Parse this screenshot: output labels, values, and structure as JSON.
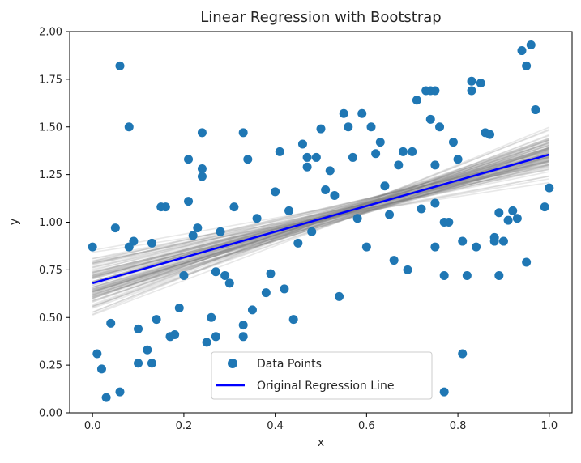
{
  "chart_data": {
    "type": "scatter",
    "title": "Linear Regression with Bootstrap",
    "xlabel": "x",
    "ylabel": "y",
    "xlim": [
      -0.05,
      1.05
    ],
    "ylim": [
      0.0,
      2.0
    ],
    "x_ticks": [
      "0.0",
      "0.2",
      "0.4",
      "0.6",
      "0.8",
      "1.0"
    ],
    "y_ticks": [
      "0.00",
      "0.25",
      "0.50",
      "0.75",
      "1.00",
      "1.25",
      "1.50",
      "1.75",
      "2.00"
    ],
    "grid": false,
    "legend_position": "lower center",
    "colors": {
      "points": "#1f77b4",
      "regression_line": "#0000ff",
      "bootstrap_lines": "#808080"
    },
    "series": [
      {
        "name": "Data Points",
        "kind": "scatter",
        "x": [
          0.0,
          0.01,
          0.02,
          0.03,
          0.04,
          0.05,
          0.06,
          0.06,
          0.08,
          0.08,
          0.09,
          0.1,
          0.1,
          0.12,
          0.13,
          0.13,
          0.14,
          0.15,
          0.16,
          0.17,
          0.18,
          0.19,
          0.2,
          0.21,
          0.21,
          0.22,
          0.23,
          0.24,
          0.24,
          0.24,
          0.25,
          0.26,
          0.27,
          0.27,
          0.28,
          0.29,
          0.3,
          0.31,
          0.33,
          0.33,
          0.33,
          0.34,
          0.35,
          0.36,
          0.38,
          0.39,
          0.4,
          0.41,
          0.42,
          0.43,
          0.44,
          0.45,
          0.46,
          0.47,
          0.47,
          0.48,
          0.49,
          0.5,
          0.51,
          0.52,
          0.53,
          0.54,
          0.55,
          0.56,
          0.57,
          0.58,
          0.59,
          0.6,
          0.61,
          0.62,
          0.63,
          0.64,
          0.65,
          0.66,
          0.67,
          0.68,
          0.69,
          0.7,
          0.71,
          0.72,
          0.73,
          0.74,
          0.74,
          0.75,
          0.75,
          0.75,
          0.75,
          0.76,
          0.77,
          0.77,
          0.77,
          0.78,
          0.79,
          0.8,
          0.81,
          0.81,
          0.82,
          0.83,
          0.83,
          0.84,
          0.85,
          0.86,
          0.87,
          0.88,
          0.88,
          0.89,
          0.89,
          0.9,
          0.91,
          0.92,
          0.93,
          0.94,
          0.95,
          0.95,
          0.96,
          0.97,
          0.99,
          1.0
        ],
        "y": [
          0.87,
          0.31,
          0.23,
          0.08,
          0.47,
          0.97,
          1.82,
          0.11,
          1.5,
          0.87,
          0.9,
          0.44,
          0.26,
          0.33,
          0.26,
          0.89,
          0.49,
          1.08,
          1.08,
          0.4,
          0.41,
          0.55,
          0.72,
          1.33,
          1.11,
          0.93,
          0.97,
          1.47,
          1.28,
          1.24,
          0.37,
          0.5,
          0.74,
          0.4,
          0.95,
          0.72,
          0.68,
          1.08,
          1.47,
          0.46,
          0.4,
          1.33,
          0.54,
          1.02,
          0.63,
          0.73,
          1.16,
          1.37,
          0.65,
          1.06,
          0.49,
          0.89,
          1.41,
          1.34,
          1.29,
          0.95,
          1.34,
          1.49,
          1.17,
          1.27,
          1.14,
          0.61,
          1.57,
          1.5,
          1.34,
          1.02,
          1.57,
          0.87,
          1.5,
          1.36,
          1.42,
          1.19,
          1.04,
          0.8,
          1.3,
          1.37,
          0.75,
          1.37,
          1.64,
          1.07,
          1.69,
          1.69,
          1.54,
          1.3,
          0.87,
          1.69,
          1.1,
          1.5,
          1.0,
          0.72,
          0.11,
          1.0,
          1.42,
          1.33,
          0.9,
          0.31,
          0.72,
          1.74,
          1.69,
          0.87,
          1.73,
          1.47,
          1.46,
          0.92,
          0.9,
          1.05,
          0.72,
          0.9,
          1.01,
          1.06,
          1.02,
          1.9,
          0.79,
          1.82,
          1.93,
          1.59,
          1.08,
          1.18
        ]
      },
      {
        "name": "Original Regression Line",
        "kind": "line",
        "x": [
          0.0,
          1.0
        ],
        "y": [
          0.68,
          1.355
        ]
      }
    ],
    "bootstrap_lines": {
      "count": 100,
      "intercept_range": [
        0.46,
        0.9
      ],
      "slope_range": [
        0.37,
        1.05
      ]
    }
  }
}
